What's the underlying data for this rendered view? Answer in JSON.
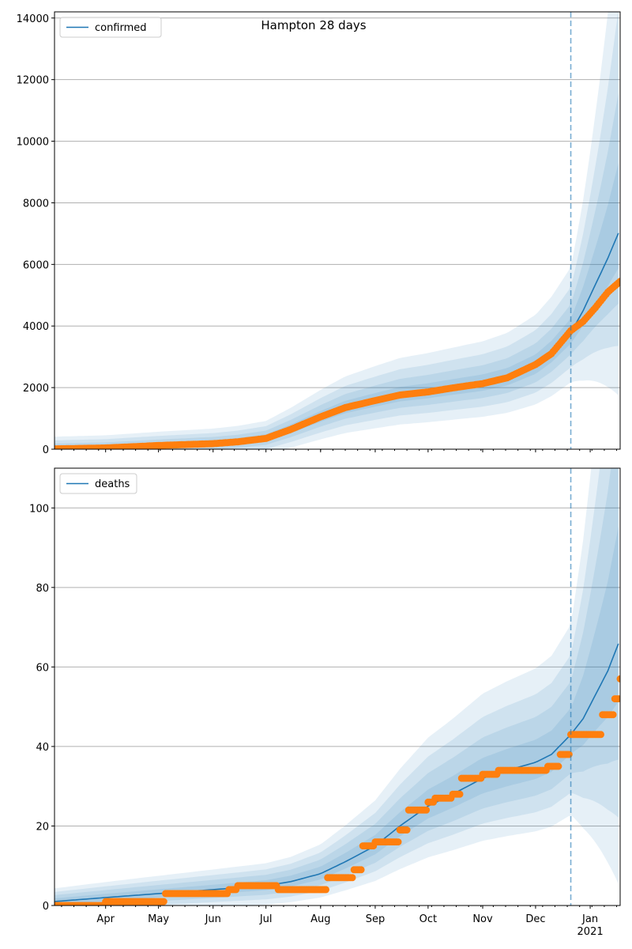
{
  "figure": {
    "title": "Hampton 28 days"
  },
  "colors": {
    "model": "#1f77b4",
    "observed": "#ff7f0e",
    "band": "#1f77b4",
    "grid": "#b0b0b0",
    "forecast_line": "#1f77b4"
  },
  "x_axis": {
    "month_labels": [
      "Apr",
      "May",
      "Jun",
      "Jul",
      "Aug",
      "Sep",
      "Oct",
      "Nov",
      "Dec",
      "Jan"
    ],
    "month_dates": [
      "2020-04-01",
      "2020-05-01",
      "2020-06-01",
      "2020-07-01",
      "2020-08-01",
      "2020-09-01",
      "2020-10-01",
      "2020-11-01",
      "2020-12-01",
      "2021-01-01"
    ],
    "year_label": "2021",
    "xlim": [
      "2020-03-03",
      "2021-01-18"
    ],
    "forecast_start": "2020-12-21"
  },
  "chart_data": [
    {
      "type": "line",
      "legend": "confirmed",
      "legend_position": "top-left",
      "grid": "y",
      "ylim": [
        0,
        14200
      ],
      "y_ticks": [
        "0",
        "2000",
        "4000",
        "6000",
        "8000",
        "10000",
        "12000",
        "14000"
      ],
      "model_series": {
        "name": "confirmed",
        "x": [
          "2020-03-03",
          "2020-04-01",
          "2020-05-01",
          "2020-06-01",
          "2020-06-15",
          "2020-07-01",
          "2020-07-15",
          "2020-08-01",
          "2020-08-15",
          "2020-09-01",
          "2020-09-15",
          "2020-10-01",
          "2020-10-15",
          "2020-11-01",
          "2020-11-15",
          "2020-12-01",
          "2020-12-10",
          "2020-12-21",
          "2020-12-28",
          "2021-01-04",
          "2021-01-11",
          "2021-01-18"
        ],
        "values": [
          10,
          40,
          120,
          190,
          250,
          360,
          650,
          1050,
          1350,
          1580,
          1760,
          1870,
          1990,
          2130,
          2320,
          2720,
          3120,
          3780,
          4500,
          5350,
          6200,
          7150
        ]
      },
      "observed": {
        "x": [
          "2020-03-03",
          "2020-04-01",
          "2020-05-01",
          "2020-06-01",
          "2020-06-15",
          "2020-07-01",
          "2020-07-15",
          "2020-08-01",
          "2020-08-15",
          "2020-09-01",
          "2020-09-15",
          "2020-10-01",
          "2020-10-15",
          "2020-11-01",
          "2020-11-15",
          "2020-12-01",
          "2020-12-10",
          "2020-12-21",
          "2020-12-28",
          "2021-01-04",
          "2021-01-11",
          "2021-01-18"
        ],
        "values": [
          10,
          40,
          120,
          180,
          240,
          350,
          640,
          1050,
          1350,
          1580,
          1760,
          1860,
          1990,
          2130,
          2320,
          2750,
          3100,
          3850,
          4150,
          4600,
          5100,
          5450
        ]
      },
      "interval_halfwidth_fraction": [
        0.1,
        0.2,
        0.32,
        0.46
      ]
    },
    {
      "type": "line",
      "legend": "deaths",
      "legend_position": "top-left",
      "grid": "y",
      "ylim": [
        0,
        110
      ],
      "y_ticks": [
        "0",
        "20",
        "40",
        "60",
        "80",
        "100"
      ],
      "model_series": {
        "name": "deaths",
        "x": [
          "2020-03-03",
          "2020-04-01",
          "2020-05-01",
          "2020-06-01",
          "2020-07-01",
          "2020-07-15",
          "2020-08-01",
          "2020-08-15",
          "2020-09-01",
          "2020-09-15",
          "2020-10-01",
          "2020-10-15",
          "2020-11-01",
          "2020-11-15",
          "2020-12-01",
          "2020-12-10",
          "2020-12-21",
          "2020-12-28",
          "2021-01-04",
          "2021-01-11",
          "2021-01-18"
        ],
        "values": [
          1,
          2,
          3,
          4,
          5,
          6,
          8,
          11,
          15,
          20,
          25,
          28,
          32,
          34,
          36,
          38,
          43,
          47,
          53,
          59,
          67
        ]
      },
      "observed": {
        "x": [
          "2020-03-03",
          "2020-03-20",
          "2020-04-01",
          "2020-05-01",
          "2020-05-05",
          "2020-06-01",
          "2020-06-10",
          "2020-06-15",
          "2020-07-01",
          "2020-07-08",
          "2020-08-01",
          "2020-08-05",
          "2020-08-20",
          "2020-08-25",
          "2020-09-01",
          "2020-09-12",
          "2020-09-15",
          "2020-09-20",
          "2020-10-01",
          "2020-10-05",
          "2020-10-15",
          "2020-10-20",
          "2020-11-01",
          "2020-11-10",
          "2020-12-01",
          "2020-12-08",
          "2020-12-15",
          "2020-12-21",
          "2021-01-01",
          "2021-01-08",
          "2021-01-15",
          "2021-01-18"
        ],
        "values": [
          0,
          0,
          1,
          1,
          3,
          3,
          4,
          5,
          5,
          4,
          4,
          7,
          9,
          15,
          16,
          16,
          19,
          24,
          26,
          27,
          28,
          32,
          33,
          34,
          34,
          35,
          38,
          43,
          43,
          48,
          52,
          57
        ]
      },
      "interval_halfwidth_fraction": [
        0.14,
        0.28,
        0.42,
        0.58
      ]
    }
  ]
}
